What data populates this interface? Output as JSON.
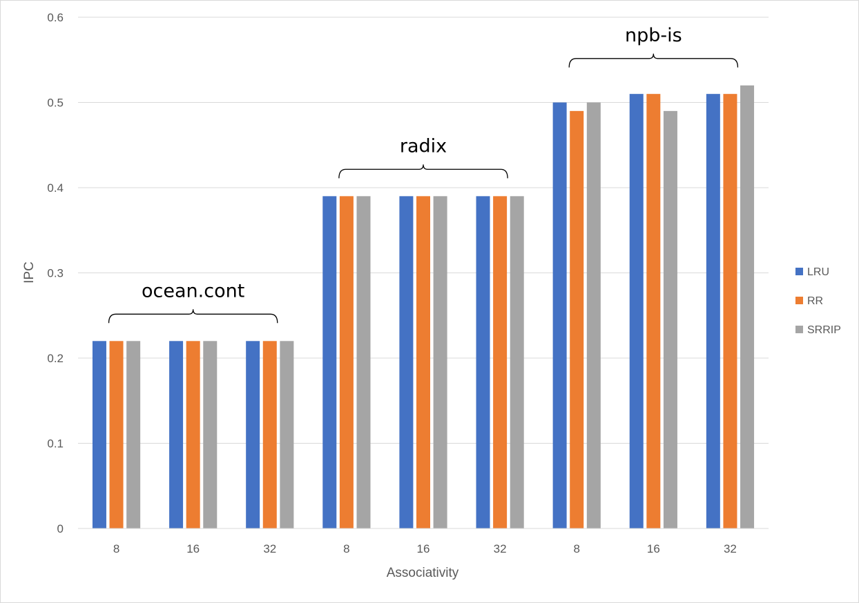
{
  "chart_data": {
    "type": "bar",
    "title": "",
    "xlabel": "Associativity",
    "ylabel": "IPC",
    "ylim": [
      0,
      0.6
    ],
    "yticks": [
      "0",
      "0.1",
      "0.2",
      "0.3",
      "0.4",
      "0.5",
      "0.6"
    ],
    "categories": [
      "8",
      "16",
      "32",
      "8",
      "16",
      "32",
      "8",
      "16",
      "32"
    ],
    "series": [
      {
        "name": "LRU",
        "color": "#4472C4",
        "values": [
          0.22,
          0.22,
          0.22,
          0.39,
          0.39,
          0.39,
          0.5,
          0.51,
          0.51
        ]
      },
      {
        "name": "RR",
        "color": "#ED7D31",
        "values": [
          0.22,
          0.22,
          0.22,
          0.39,
          0.39,
          0.39,
          0.49,
          0.51,
          0.51
        ]
      },
      {
        "name": "SRRIP",
        "color": "#A5A5A5",
        "values": [
          0.22,
          0.22,
          0.22,
          0.39,
          0.39,
          0.39,
          0.5,
          0.49,
          0.52
        ]
      }
    ],
    "groups": [
      {
        "label": "ocean.cont",
        "categories": [
          0,
          1,
          2
        ]
      },
      {
        "label": "radix",
        "categories": [
          3,
          4,
          5
        ]
      },
      {
        "label": "npb-is",
        "categories": [
          6,
          7,
          8
        ]
      }
    ],
    "grid": true,
    "legend_position": "right"
  }
}
